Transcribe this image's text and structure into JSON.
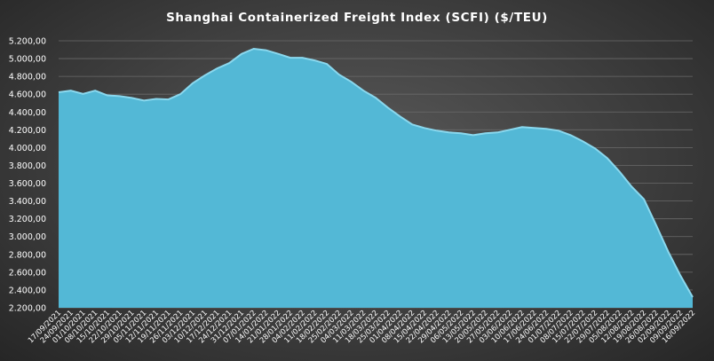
{
  "chart_data": {
    "type": "area",
    "title": "Shanghai Containerized Freight Index  (SCFI) ($/TEU)",
    "xlabel": "",
    "ylabel": "",
    "ylim": [
      2200,
      5200
    ],
    "yticks": [
      2200,
      2400,
      2600,
      2800,
      3000,
      3200,
      3400,
      3600,
      3800,
      4000,
      4200,
      4400,
      4600,
      4800,
      5000,
      5200
    ],
    "ytick_labels": [
      "2.200,00",
      "2.400,00",
      "2.600,00",
      "2.800,00",
      "3.000,00",
      "3.200,00",
      "3.400,00",
      "3.600,00",
      "3.800,00",
      "4.000,00",
      "4.200,00",
      "4.400,00",
      "4.600,00",
      "4.800,00",
      "5.000,00",
      "5.200,00"
    ],
    "grid": true,
    "legend": "none",
    "fill_color": "#53b8d6",
    "line_color": "#8ad8ee",
    "x": [
      "17/09/2021",
      "24/09/2021",
      "01/10/2021",
      "08/10/2021",
      "15/10/2021",
      "22/10/2021",
      "29/10/2021",
      "05/11/2021",
      "12/11/2021",
      "19/11/2021",
      "26/11/2021",
      "03/12/2021",
      "10/12/2021",
      "17/12/2021",
      "24/12/2021",
      "31/12/2021",
      "07/01/2022",
      "14/01/2022",
      "21/01/2022",
      "28/01/2022",
      "04/02/2022",
      "11/02/2022",
      "18/02/2022",
      "25/02/2022",
      "04/03/2022",
      "11/03/2022",
      "18/03/2022",
      "25/03/2022",
      "01/04/2022",
      "08/04/2022",
      "15/04/2022",
      "22/04/2022",
      "29/04/2022",
      "06/05/2022",
      "13/05/2022",
      "20/05/2022",
      "27/05/2022",
      "03/06/2022",
      "10/06/2022",
      "17/06/2022",
      "24/06/2022",
      "01/07/2022",
      "08/07/2022",
      "15/07/2022",
      "22/07/2022",
      "29/07/2022",
      "05/08/2022",
      "12/08/2022",
      "19/08/2022",
      "26/08/2022",
      "02/09/2022",
      "09/09/2022",
      "16/09/2022"
    ],
    "values": [
      4622,
      4640,
      4603,
      4640,
      4587,
      4578,
      4558,
      4528,
      4547,
      4541,
      4602,
      4724,
      4812,
      4890,
      4950,
      5052,
      5110,
      5094,
      5053,
      5010,
      5010,
      4980,
      4940,
      4820,
      4740,
      4640,
      4560,
      4450,
      4350,
      4260,
      4220,
      4190,
      4170,
      4160,
      4140,
      4160,
      4170,
      4200,
      4230,
      4220,
      4210,
      4190,
      4140,
      4070,
      3990,
      3880,
      3730,
      3560,
      3420,
      3130,
      2830,
      2560,
      2320
    ]
  }
}
